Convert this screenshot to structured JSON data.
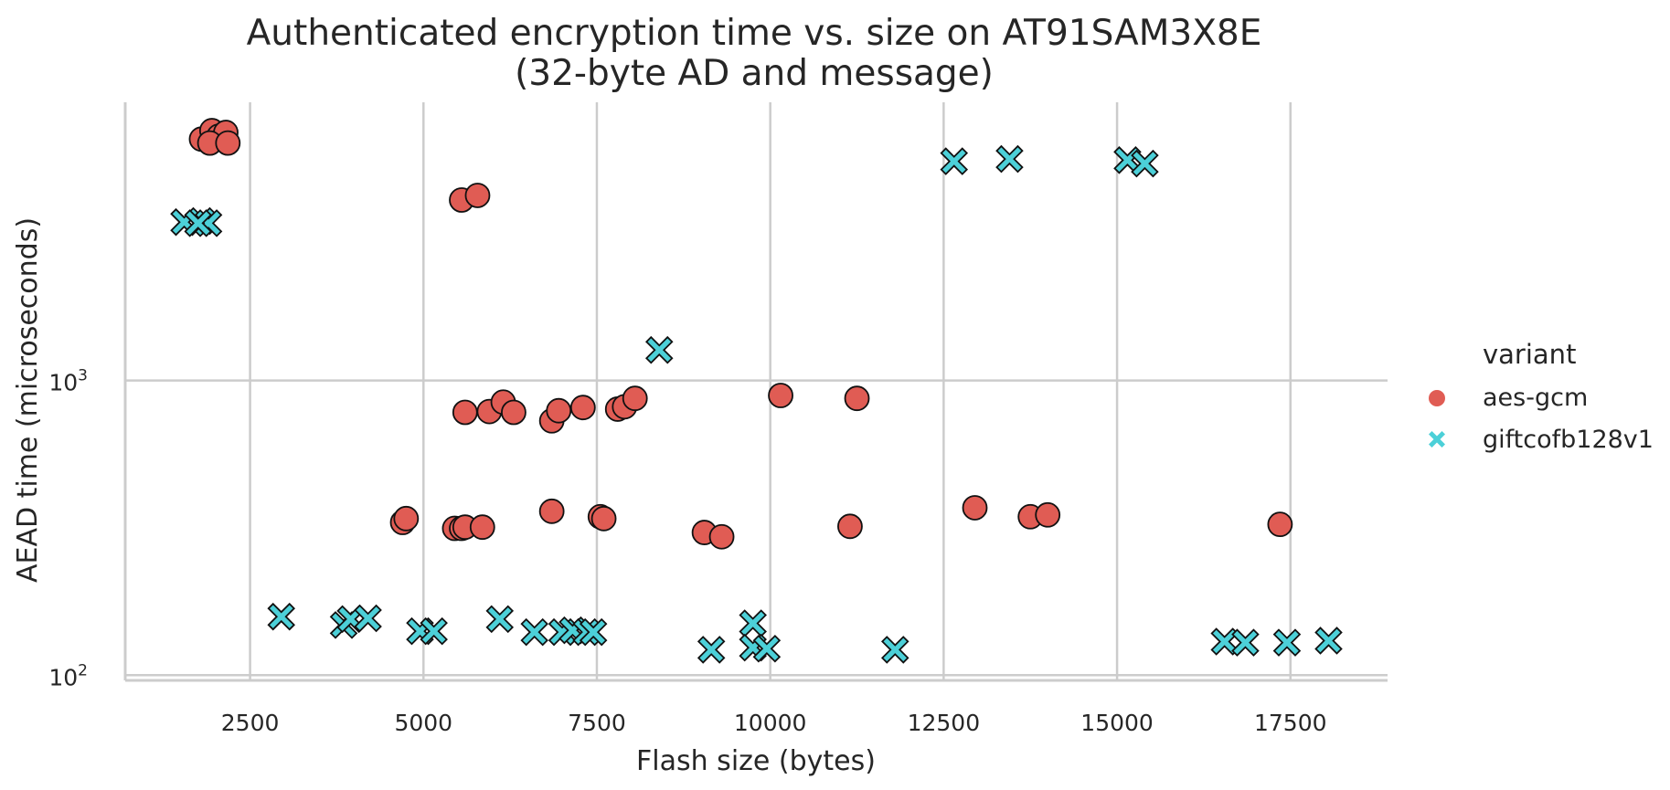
{
  "chart_data": {
    "type": "scatter",
    "title": "Authenticated encryption time vs. size on AT91SAM3X8E",
    "subtitle": "(32-byte AD and message)",
    "xlabel": "Flash size (bytes)",
    "ylabel": "AEAD time (microseconds)",
    "x_ticks": [
      2500,
      5000,
      7500,
      10000,
      12500,
      15000,
      17500
    ],
    "y_ticks": [
      100,
      1000
    ],
    "y_tick_labels": [
      {
        "base": "10",
        "exp": "2"
      },
      {
        "base": "10",
        "exp": "3"
      }
    ],
    "xlim": [
      700,
      18900
    ],
    "ylim": [
      96,
      8800
    ],
    "y_scale": "log",
    "grid": true,
    "legend": {
      "title": "variant",
      "placement": "right"
    },
    "series": [
      {
        "name": "aes-gcm",
        "marker": "circle",
        "color": "#e05c54",
        "points": [
          [
            1800,
            6600
          ],
          [
            1950,
            7050
          ],
          [
            2050,
            6750
          ],
          [
            2150,
            6950
          ],
          [
            1920,
            6400
          ],
          [
            2180,
            6400
          ],
          [
            5550,
            4100
          ],
          [
            5780,
            4250
          ],
          [
            5600,
            780
          ],
          [
            5950,
            785
          ],
          [
            6150,
            845
          ],
          [
            6300,
            780
          ],
          [
            6850,
            730
          ],
          [
            6950,
            790
          ],
          [
            7300,
            810
          ],
          [
            7800,
            800
          ],
          [
            7900,
            815
          ],
          [
            8050,
            870
          ],
          [
            10150,
            890
          ],
          [
            11250,
            870
          ],
          [
            4700,
            330
          ],
          [
            4750,
            340
          ],
          [
            5450,
            315
          ],
          [
            5550,
            315
          ],
          [
            5600,
            318
          ],
          [
            5850,
            318
          ],
          [
            6850,
            360
          ],
          [
            7550,
            345
          ],
          [
            7600,
            340
          ],
          [
            9050,
            305
          ],
          [
            9300,
            295
          ],
          [
            11150,
            320
          ],
          [
            12950,
            370
          ],
          [
            13750,
            345
          ],
          [
            14000,
            350
          ],
          [
            17350,
            325
          ]
        ]
      },
      {
        "name": "giftcofb128v1",
        "marker": "x",
        "color": "#4cd0d8",
        "points": [
          [
            1550,
            3450
          ],
          [
            1800,
            3480
          ],
          [
            1900,
            3420
          ],
          [
            1750,
            3420
          ],
          [
            12650,
            5550
          ],
          [
            13450,
            5650
          ],
          [
            15150,
            5600
          ],
          [
            15400,
            5450
          ],
          [
            8400,
            1270
          ],
          [
            2950,
            158
          ],
          [
            3850,
            148
          ],
          [
            3950,
            155
          ],
          [
            4200,
            156
          ],
          [
            4950,
            141
          ],
          [
            5150,
            141
          ],
          [
            6100,
            155
          ],
          [
            6600,
            140
          ],
          [
            7000,
            140
          ],
          [
            7150,
            142
          ],
          [
            7350,
            140
          ],
          [
            7450,
            140
          ],
          [
            9150,
            122
          ],
          [
            9750,
            150
          ],
          [
            9750,
            124
          ],
          [
            9950,
            123
          ],
          [
            11800,
            122
          ],
          [
            16550,
            130
          ],
          [
            16850,
            129
          ],
          [
            17450,
            129
          ],
          [
            18050,
            131
          ]
        ]
      }
    ]
  }
}
